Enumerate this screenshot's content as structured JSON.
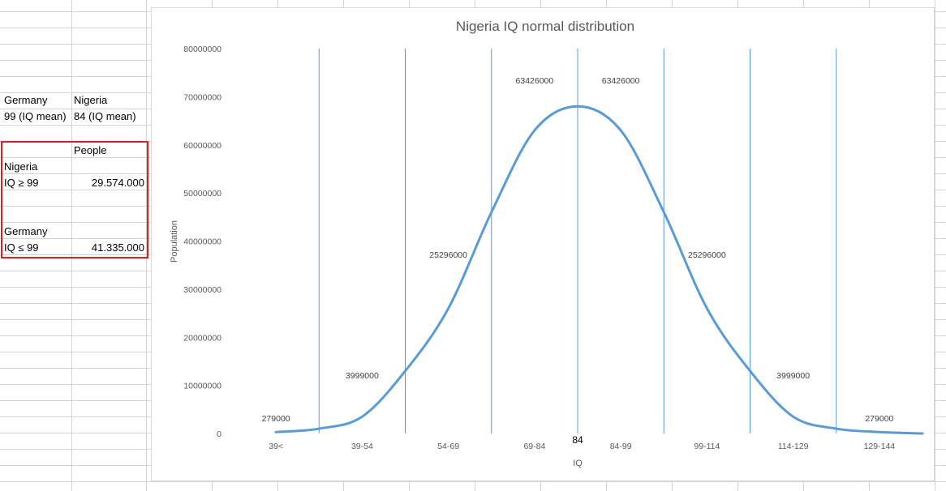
{
  "spreadsheet": {
    "header_row": {
      "col_a": "Germany",
      "col_b": "Nigeria"
    },
    "mean_row": {
      "col_a": "99 (IQ mean)",
      "col_b": "84 (IQ mean)"
    },
    "table": {
      "header": "People",
      "rows": [
        {
          "label": "Nigeria",
          "value": ""
        },
        {
          "label": "IQ ≥ 99",
          "value": "29.574.000"
        },
        {
          "label": "",
          "value": ""
        },
        {
          "label": "Germany",
          "value": ""
        },
        {
          "label": "IQ ≤ 99",
          "value": "41.335.000"
        }
      ]
    },
    "colors": {
      "gridline": "#d4d4d4",
      "selection_border": "#d92121"
    }
  },
  "chart_data": {
    "type": "line",
    "title": "Nigeria IQ normal distribution",
    "xlabel": "IQ",
    "ylabel": "Population",
    "ylim": [
      0,
      80000000
    ],
    "y_ticks": [
      0,
      10000000,
      20000000,
      30000000,
      40000000,
      50000000,
      60000000,
      70000000,
      80000000
    ],
    "categories": [
      "39<",
      "39-54",
      "54-69",
      "69-84",
      "84-99",
      "99-114",
      "114-129",
      "129-144"
    ],
    "series": [
      {
        "values": [
          279000,
          3999000,
          25296000,
          63426000,
          63426000,
          25296000,
          3999000,
          279000
        ]
      }
    ],
    "data_labels": [
      "279000",
      "3999000",
      "25296000",
      "63426000",
      "63426000",
      "25296000",
      "3999000",
      "279000"
    ],
    "curve": {
      "x": [
        0,
        0.5,
        1,
        1.5,
        2,
        2.5,
        3,
        3.5,
        4,
        4.5,
        5,
        5.5,
        6,
        6.5,
        7,
        7.5
      ],
      "y": [
        300000,
        1000000,
        3500000,
        13000000,
        26000000,
        46000000,
        63000000,
        68000000,
        63000000,
        46000000,
        26000000,
        13000000,
        3500000,
        1000000,
        300000,
        0
      ]
    },
    "mean_label": "84",
    "mean_at": 4,
    "grid": false,
    "colors": {
      "line": "#5b9bd5",
      "divider": "#5b9bd5",
      "text": "#595959"
    }
  }
}
